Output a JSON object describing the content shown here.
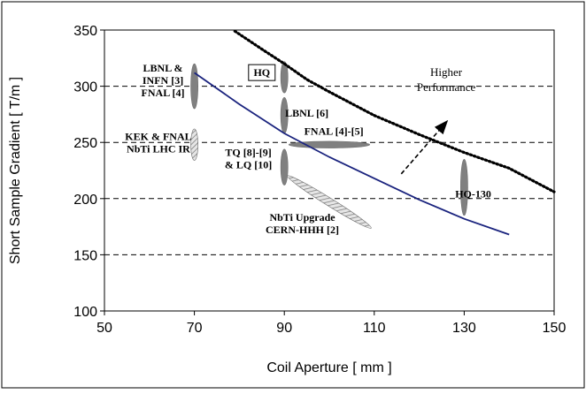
{
  "chart_data": {
    "type": "line",
    "xlabel": "Coil Aperture [ mm ]",
    "ylabel": "Short Sample Gradient [ T/m ]",
    "xlim": [
      50,
      150
    ],
    "ylim": [
      100,
      350
    ],
    "xticks": [
      50,
      70,
      90,
      110,
      130,
      150
    ],
    "yticks": [
      100,
      150,
      200,
      250,
      300,
      350
    ],
    "grid": "horizontal dashed",
    "series": [
      {
        "color": "#1a237e",
        "style": "solid",
        "x": [
          70,
          80,
          90,
          100,
          110,
          120,
          130,
          140
        ],
        "y": [
          312,
          284,
          258,
          237,
          218,
          199,
          182,
          168
        ]
      },
      {
        "color": "#000000",
        "style": "dotted",
        "x": [
          79,
          85,
          90,
          95,
          100,
          110,
          120,
          130,
          140,
          150
        ],
        "y": [
          349,
          333,
          320,
          306,
          295,
          274,
          257,
          241,
          227,
          206
        ]
      }
    ],
    "ellipses": [
      {
        "cx": 70,
        "cy": 300,
        "rx": 0.8,
        "ry": 20,
        "angle": 0,
        "fill": "#808080"
      },
      {
        "cx": 70,
        "cy": 248,
        "rx": 0.8,
        "ry": 14,
        "angle": 0,
        "fill": "#bdbdbd",
        "hatched": true
      },
      {
        "cx": 90,
        "cy": 308,
        "rx": 0.8,
        "ry": 14,
        "angle": 0,
        "fill": "#808080"
      },
      {
        "cx": 90,
        "cy": 274,
        "rx": 0.8,
        "ry": 16,
        "angle": 0,
        "fill": "#808080"
      },
      {
        "cx": 90,
        "cy": 228,
        "rx": 0.8,
        "ry": 16,
        "angle": 0,
        "fill": "#808080"
      },
      {
        "cx": 100,
        "cy": 248,
        "rx": 9,
        "ry": 3,
        "angle": 0,
        "fill": "#808080"
      },
      {
        "cx": 100,
        "cy": 197,
        "rx": 11,
        "ry": 3.5,
        "angle": 32,
        "fill": "#cfcfcf",
        "hatched": true
      },
      {
        "cx": 130,
        "cy": 210,
        "rx": 0.8,
        "ry": 25,
        "angle": 0,
        "fill": "#808080"
      }
    ],
    "annotations": [
      {
        "id": "lbnl-infn",
        "lines": [
          "LBNL &",
          "INFN  [3]",
          "FNAL [4]"
        ],
        "x": 63,
        "y": 313
      },
      {
        "id": "kek-fnal",
        "lines": [
          "KEK & FNAL",
          "NbTi LHC IR"
        ],
        "x": 62,
        "y": 252
      },
      {
        "id": "hq",
        "lines": [
          "HQ"
        ],
        "x": 85,
        "y": 309,
        "boxed": true
      },
      {
        "id": "lbnl6",
        "lines": [
          "LBNL [6]"
        ],
        "x": 95,
        "y": 273
      },
      {
        "id": "fnal45",
        "lines": [
          "FNAL [4]-[5]"
        ],
        "x": 101,
        "y": 257
      },
      {
        "id": "tq-lq",
        "lines": [
          "TQ [8]-[9]",
          "& LQ [10]"
        ],
        "x": 82,
        "y": 238
      },
      {
        "id": "nbti-upgrade",
        "lines": [
          "NbTi Upgrade",
          "CERN-HHH [2]"
        ],
        "x": 94,
        "y": 180
      },
      {
        "id": "hq130",
        "lines": [
          "HQ-130"
        ],
        "x": 132,
        "y": 201
      },
      {
        "id": "higher-perf",
        "lines": [
          "Higher",
          "Performance"
        ],
        "x": 126,
        "y": 309,
        "plain": true
      }
    ],
    "arrow": {
      "from": [
        116,
        222
      ],
      "to": [
        126,
        268
      ]
    }
  }
}
